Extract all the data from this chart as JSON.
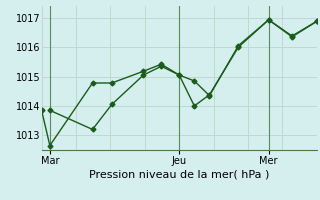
{
  "xlabel": "Pression niveau de la mer( hPa )",
  "background_color": "#d5eeee",
  "grid_color": "#c0d8d0",
  "line_color": "#1a5c1a",
  "ylim": [
    1012.5,
    1017.4
  ],
  "yticks": [
    1013,
    1014,
    1015,
    1016,
    1017
  ],
  "day_labels": [
    "Mar",
    "Jeu",
    "Mer"
  ],
  "day_positions": [
    0.03,
    0.5,
    0.825
  ],
  "vline_x": [
    0.03,
    0.5,
    0.825
  ],
  "grid_x": [
    0.0,
    0.125,
    0.25,
    0.375,
    0.5,
    0.625,
    0.75,
    0.875,
    1.0
  ],
  "line1_x": [
    0.0,
    0.03,
    0.185,
    0.255,
    0.37,
    0.435,
    0.5,
    0.555,
    0.61,
    0.715,
    0.825,
    0.91,
    1.0
  ],
  "line1_y": [
    1013.85,
    1012.65,
    1014.78,
    1014.78,
    1015.18,
    1015.42,
    1015.05,
    1014.85,
    1014.35,
    1016.05,
    1016.93,
    1016.35,
    1016.88
  ],
  "line2_x": [
    0.03,
    0.185,
    0.255,
    0.37,
    0.435,
    0.5,
    0.555,
    0.61,
    0.715,
    0.825,
    0.91,
    1.0
  ],
  "line2_y": [
    1013.85,
    1013.2,
    1014.05,
    1015.05,
    1015.35,
    1015.05,
    1014.0,
    1014.38,
    1016.0,
    1016.93,
    1016.38,
    1016.88
  ],
  "xlabel_fontsize": 8,
  "ytick_fontsize": 7,
  "xtick_fontsize": 7
}
